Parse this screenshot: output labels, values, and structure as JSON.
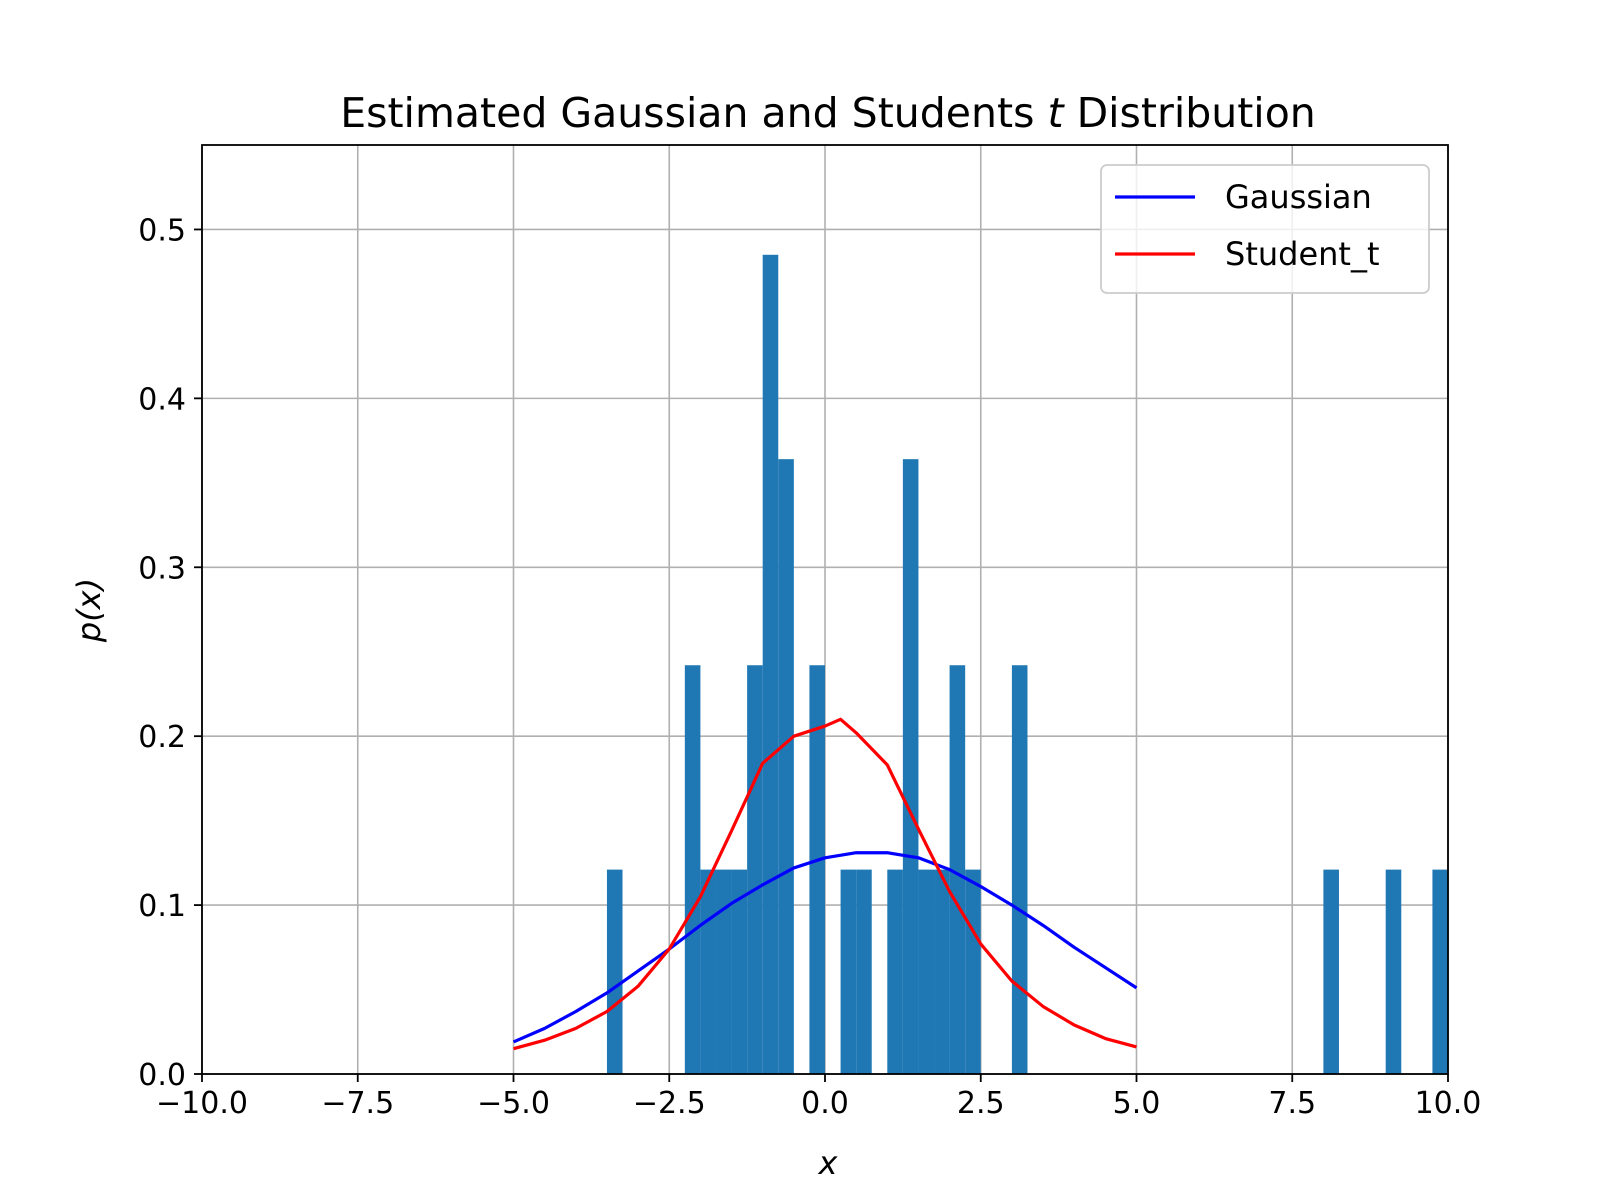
{
  "chart_data": {
    "type": "bar",
    "title": "Estimated Gaussian and Students t Distribution",
    "title_parts": [
      "Estimated Gaussian and Students ",
      "t",
      " Distribution"
    ],
    "xlabel": "x",
    "ylabel": "p(x)",
    "xlim": [
      -10,
      10
    ],
    "ylim": [
      0,
      0.55
    ],
    "xticks": [
      -10,
      -7.5,
      -5,
      -2.5,
      0,
      2.5,
      5,
      7.5,
      10
    ],
    "xtick_labels": [
      "−10.0",
      "−7.5",
      "−5.0",
      "−2.5",
      "0.0",
      "2.5",
      "5.0",
      "7.5",
      "10.0"
    ],
    "yticks": [
      0,
      0.1,
      0.2,
      0.3,
      0.4,
      0.5
    ],
    "ytick_labels": [
      "0.0",
      "0.1",
      "0.2",
      "0.3",
      "0.4",
      "0.5"
    ],
    "grid": true,
    "legend_position": "top-right",
    "histogram": {
      "color": "#1f77b4",
      "bin_width": 0.25,
      "bins": [
        {
          "x0": -3.5,
          "value": 0.121
        },
        {
          "x0": -2.25,
          "value": 0.242
        },
        {
          "x0": -2.0,
          "value": 0.121
        },
        {
          "x0": -1.75,
          "value": 0.121
        },
        {
          "x0": -1.5,
          "value": 0.121
        },
        {
          "x0": -1.25,
          "value": 0.242
        },
        {
          "x0": -1.0,
          "value": 0.485
        },
        {
          "x0": -0.75,
          "value": 0.364
        },
        {
          "x0": -0.25,
          "value": 0.242
        },
        {
          "x0": 0.25,
          "value": 0.121
        },
        {
          "x0": 0.5,
          "value": 0.121
        },
        {
          "x0": 1.0,
          "value": 0.121
        },
        {
          "x0": 1.25,
          "value": 0.364
        },
        {
          "x0": 1.5,
          "value": 0.121
        },
        {
          "x0": 1.75,
          "value": 0.121
        },
        {
          "x0": 2.0,
          "value": 0.242
        },
        {
          "x0": 2.25,
          "value": 0.121
        },
        {
          "x0": 3.0,
          "value": 0.242
        },
        {
          "x0": 8.0,
          "value": 0.121
        },
        {
          "x0": 9.0,
          "value": 0.121
        },
        {
          "x0": 9.75,
          "value": 0.121
        }
      ]
    },
    "series": [
      {
        "name": "Gaussian",
        "color": "#0000ff",
        "x": [
          -5.0,
          -4.5,
          -4.0,
          -3.5,
          -3.0,
          -2.5,
          -2.0,
          -1.5,
          -1.0,
          -0.5,
          0.0,
          0.5,
          1.0,
          1.5,
          2.0,
          2.5,
          3.0,
          3.5,
          4.0,
          4.5,
          5.0
        ],
        "y": [
          0.019,
          0.027,
          0.037,
          0.048,
          0.061,
          0.074,
          0.088,
          0.101,
          0.112,
          0.122,
          0.128,
          0.131,
          0.131,
          0.128,
          0.121,
          0.111,
          0.1,
          0.088,
          0.075,
          0.063,
          0.051
        ]
      },
      {
        "name": "Student_t",
        "color": "#ff0000",
        "x": [
          -5.0,
          -4.5,
          -4.0,
          -3.5,
          -3.0,
          -2.5,
          -2.0,
          -1.5,
          -1.0,
          -0.5,
          0.0,
          0.25,
          0.5,
          1.0,
          1.5,
          2.0,
          2.5,
          3.0,
          3.5,
          4.0,
          4.5,
          5.0
        ],
        "y": [
          0.015,
          0.02,
          0.027,
          0.037,
          0.052,
          0.074,
          0.105,
          0.144,
          0.184,
          0.2,
          0.206,
          0.21,
          0.202,
          0.183,
          0.145,
          0.108,
          0.077,
          0.055,
          0.04,
          0.029,
          0.021,
          0.016
        ]
      }
    ]
  }
}
